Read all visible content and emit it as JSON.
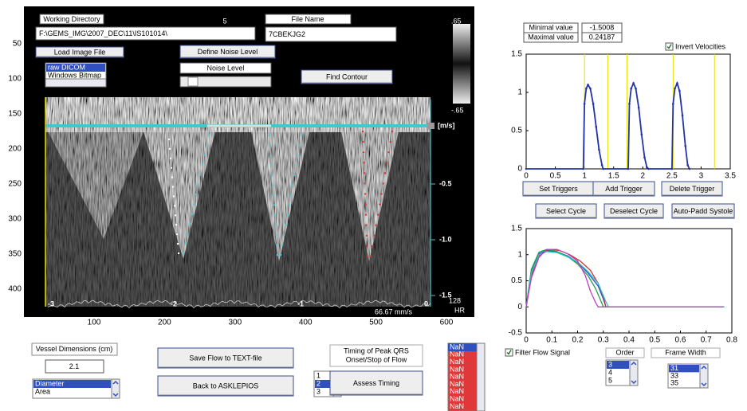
{
  "image_panel": {
    "working_directory_label": "Working Directory",
    "working_directory": "F:\\GEMS_IMG\\2007_DEC\\11\\IS101014\\",
    "file_name_label": "File Name",
    "file_name": "7CBEKJG2",
    "load_button": "Load Image File",
    "file_types": [
      "raw DICOM",
      "Windows Bitmap"
    ],
    "define_noise_button": "Define Noise Level",
    "noise_label": "Noise Level",
    "find_contour_button": "Find Contour",
    "top_marker": "5",
    "image_y_ticks": [
      50,
      100,
      150,
      200,
      250,
      300,
      350,
      400
    ],
    "image_x_ticks": [
      100,
      200,
      300,
      400,
      500,
      600
    ],
    "velocity_unit": "[m/s]",
    "velocity_ticks": [
      "-0.5",
      "-1.0",
      "-1.5"
    ],
    "colorbar_labels": [
      ".65",
      "-.65"
    ],
    "time_labels": [
      "-3",
      "-2",
      "-1",
      "0"
    ],
    "sweep_speed": "66.67 mm/s",
    "heart_rate": "128",
    "heart_rate_unit": "HR"
  },
  "velocity_panel": {
    "min_label": "Minimal value",
    "min_value": "-1.5008",
    "max_label": "Maximal value",
    "max_value": "0.24187",
    "invert_checkbox": "Invert Velocities",
    "buttons": [
      "Set Triggers",
      "Add Trigger",
      "Delete Trigger",
      "Select Cycle",
      "Deselect Cycle",
      "Auto-Padd Systole"
    ]
  },
  "filter_panel": {
    "filter_checkbox": "Filter Flow Signal",
    "order_label": "Order",
    "order_options": [
      "3",
      "4",
      "5"
    ],
    "frame_width_label": "Frame Width",
    "frame_width_options": [
      "31",
      "33",
      "35"
    ]
  },
  "bottom_panel": {
    "vessel_label": "Vessel Dimensions (cm)",
    "vessel_value": "2.1",
    "dimension_options": [
      "Diameter",
      "Area"
    ],
    "save_button": "Save Flow to TEXT-file",
    "back_button": "Back to ASKLEPIOS",
    "timing_label": [
      "Timing of Peak QRS",
      "Onset/Stop of Flow"
    ],
    "timing_options": [
      "1",
      "2",
      "3"
    ],
    "assess_button": "Assess Timing",
    "results": [
      "NaN",
      "NaN",
      "NaN",
      "NaN",
      "NaN",
      "NaN",
      "NaN",
      "NaN",
      "NaN"
    ]
  },
  "chart_data": [
    {
      "type": "line",
      "xlim": [
        0,
        3.5
      ],
      "ylim": [
        0,
        1.5
      ],
      "xticks": [
        0,
        0.5,
        1,
        1.5,
        2,
        2.5,
        3,
        3.5
      ],
      "yticks": [
        0,
        0.5,
        1,
        1.5
      ],
      "triggers": [
        1.0,
        1.4,
        1.73,
        2.52,
        3.23
      ],
      "trigger_color": "#e6df00",
      "markers": true,
      "series": [
        {
          "color": "#2233aa",
          "x": [
            0,
            0.98,
            1.0,
            1.03,
            1.06,
            1.1,
            1.15,
            1.2,
            1.25,
            1.3,
            1.32,
            1.75,
            1.77,
            1.8,
            1.84,
            1.88,
            1.93,
            1.98,
            2.03,
            2.07,
            2.1,
            2.5,
            2.52,
            2.55,
            2.59,
            2.63,
            2.68,
            2.73,
            2.77,
            2.8
          ],
          "values": [
            0,
            0,
            0.85,
            1.05,
            1.1,
            1.05,
            0.85,
            0.55,
            0.25,
            0.05,
            0,
            0,
            0.85,
            1.05,
            1.12,
            1.05,
            0.8,
            0.45,
            0.15,
            0.02,
            0,
            0,
            0.85,
            1.05,
            1.12,
            1.02,
            0.7,
            0.3,
            0.05,
            0
          ]
        }
      ]
    },
    {
      "type": "line",
      "xlim": [
        0,
        0.8
      ],
      "ylim": [
        -0.5,
        1.5
      ],
      "xticks": [
        0,
        0.1,
        0.2,
        0.3,
        0.4,
        0.5,
        0.6,
        0.7,
        0.8
      ],
      "yticks": [
        -0.5,
        0,
        0.5,
        1,
        1.5
      ],
      "markers": false,
      "series": [
        {
          "color": "#2a4fc8",
          "x": [
            0,
            0.02,
            0.05,
            0.08,
            0.12,
            0.16,
            0.2,
            0.24,
            0.28,
            0.3,
            0.31,
            0.35,
            0.77
          ],
          "values": [
            0,
            0.7,
            1.02,
            1.08,
            1.05,
            0.98,
            0.85,
            0.65,
            0.4,
            0.15,
            0,
            0,
            0
          ]
        },
        {
          "color": "#d03030",
          "x": [
            0,
            0.02,
            0.05,
            0.09,
            0.13,
            0.17,
            0.21,
            0.25,
            0.28,
            0.3,
            0.31,
            0.35,
            0.77
          ],
          "values": [
            0,
            0.6,
            0.98,
            1.1,
            1.08,
            1.0,
            0.88,
            0.7,
            0.45,
            0.2,
            0,
            0,
            0
          ]
        },
        {
          "color": "#20a050",
          "x": [
            0,
            0.02,
            0.05,
            0.08,
            0.12,
            0.16,
            0.2,
            0.24,
            0.27,
            0.29,
            0.3,
            0.35,
            0.77
          ],
          "values": [
            0,
            0.72,
            1.05,
            1.1,
            1.06,
            0.97,
            0.82,
            0.6,
            0.35,
            0.12,
            0,
            0,
            0
          ]
        },
        {
          "color": "#30c0c8",
          "x": [
            0,
            0.02,
            0.05,
            0.08,
            0.12,
            0.16,
            0.2,
            0.24,
            0.28,
            0.31,
            0.32,
            0.35,
            0.77
          ],
          "values": [
            0,
            0.65,
            1.0,
            1.06,
            1.04,
            0.96,
            0.86,
            0.68,
            0.45,
            0.1,
            0,
            0,
            0
          ]
        },
        {
          "color": "#c040c0",
          "x": [
            0,
            0.02,
            0.05,
            0.08,
            0.12,
            0.16,
            0.2,
            0.23,
            0.25,
            0.27,
            0.28,
            0.35,
            0.77
          ],
          "values": [
            0,
            0.55,
            0.95,
            1.1,
            1.1,
            1.02,
            0.88,
            0.6,
            0.3,
            0.08,
            0,
            0,
            0
          ]
        }
      ]
    }
  ]
}
